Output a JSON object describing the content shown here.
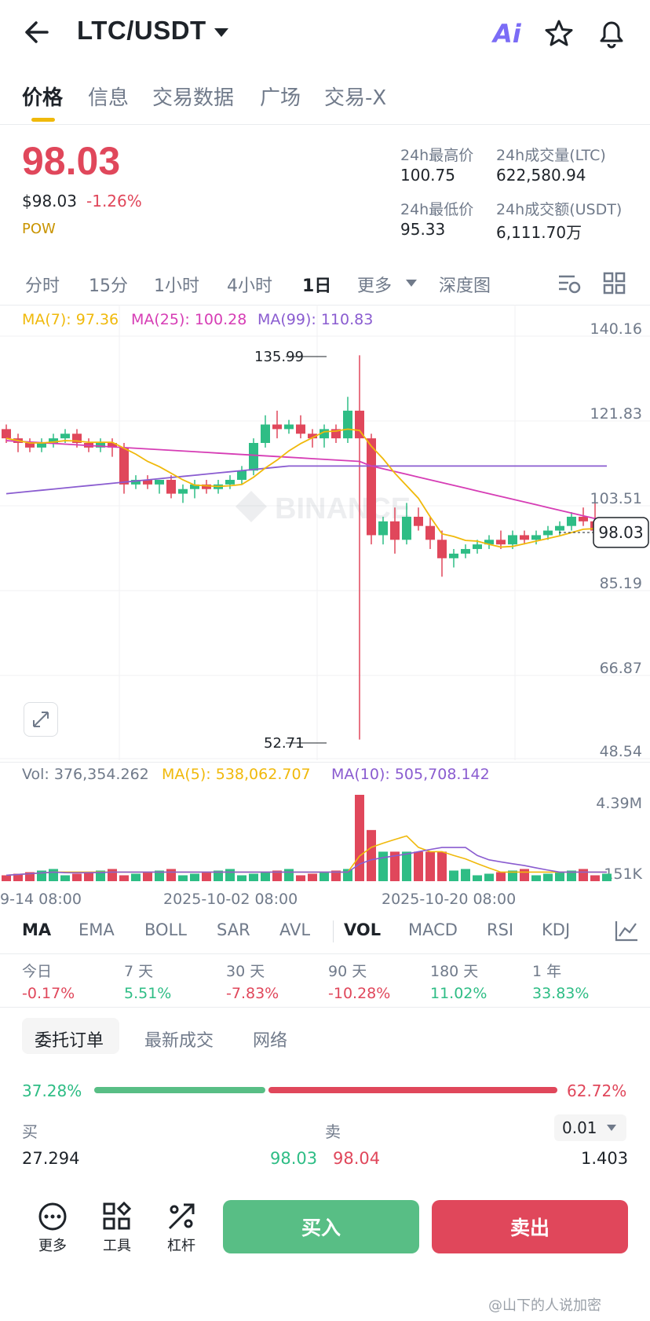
{
  "header": {
    "pair": "LTC/USDT",
    "ai_label": "Ai"
  },
  "tabs": [
    "价格",
    "信息",
    "交易数据",
    "广场",
    "交易-X"
  ],
  "price": {
    "last": "98.03",
    "usd": "$98.03",
    "change": "-1.26%",
    "tag": "POW"
  },
  "stats": {
    "high_label": "24h最高价",
    "high": "100.75",
    "low_label": "24h最低价",
    "low": "95.33",
    "vol_ltc_label": "24h成交量(LTC)",
    "vol_ltc": "622,580.94",
    "vol_usdt_label": "24h成交额(USDT)",
    "vol_usdt": "6,111.70万"
  },
  "intervals": [
    "分时",
    "15分",
    "1小时",
    "4小时",
    "1日",
    "更多",
    "深度图"
  ],
  "ma_legend": {
    "ma7": "MA(7): 97.36",
    "ma25": "MA(25): 100.28",
    "ma99": "MA(99): 110.83"
  },
  "y_axis": [
    "140.16",
    "121.83",
    "103.51",
    "85.19",
    "66.87",
    "48.54"
  ],
  "price_tag": "98.03",
  "annotations": {
    "high": "135.99",
    "low": "52.71"
  },
  "watermark": "BINANCE",
  "vol_legend": {
    "vol": "Vol: 376,354.262",
    "ma5": "MA(5): 538,062.707",
    "ma10": "MA(10): 505,708.142"
  },
  "vol_axis": [
    "4.39M",
    "151K"
  ],
  "x_axis": [
    "9-14 08:00",
    "2025-10-02 08:00",
    "2025-10-20 08:00"
  ],
  "indicators": [
    "MA",
    "EMA",
    "BOLL",
    "SAR",
    "AVL",
    "VOL",
    "MACD",
    "RSI",
    "KDJ"
  ],
  "performance": [
    {
      "label": "今日",
      "value": "-0.17%"
    },
    {
      "label": "7 天",
      "value": "5.51%"
    },
    {
      "label": "30 天",
      "value": "-7.83%"
    },
    {
      "label": "90 天",
      "value": "-10.28%"
    },
    {
      "label": "180 天",
      "value": "11.02%"
    },
    {
      "label": "1 年",
      "value": "33.83%"
    }
  ],
  "orderbook_tabs": [
    "委托订单",
    "最新成交",
    "网络"
  ],
  "ratio": {
    "buy": "37.28%",
    "sell": "62.72%",
    "buy_frac": 0.3728
  },
  "ob_head": {
    "buy": "买",
    "sell": "卖",
    "step": "0.01"
  },
  "ob_row": {
    "bid_qty": "27.294",
    "bid_px": "98.03",
    "ask_px": "98.04",
    "ask_qty": "1.403"
  },
  "bottom": {
    "more": "更多",
    "tools": "工具",
    "leverage": "杠杆",
    "buy": "买入",
    "sell": "卖出"
  },
  "credit": "@山下的人说加密",
  "colors": {
    "up": "#2ebd85",
    "down": "#e0475b",
    "ma7": "#f0b90b",
    "ma25": "#d63db5",
    "ma99": "#8a5cd0"
  }
}
